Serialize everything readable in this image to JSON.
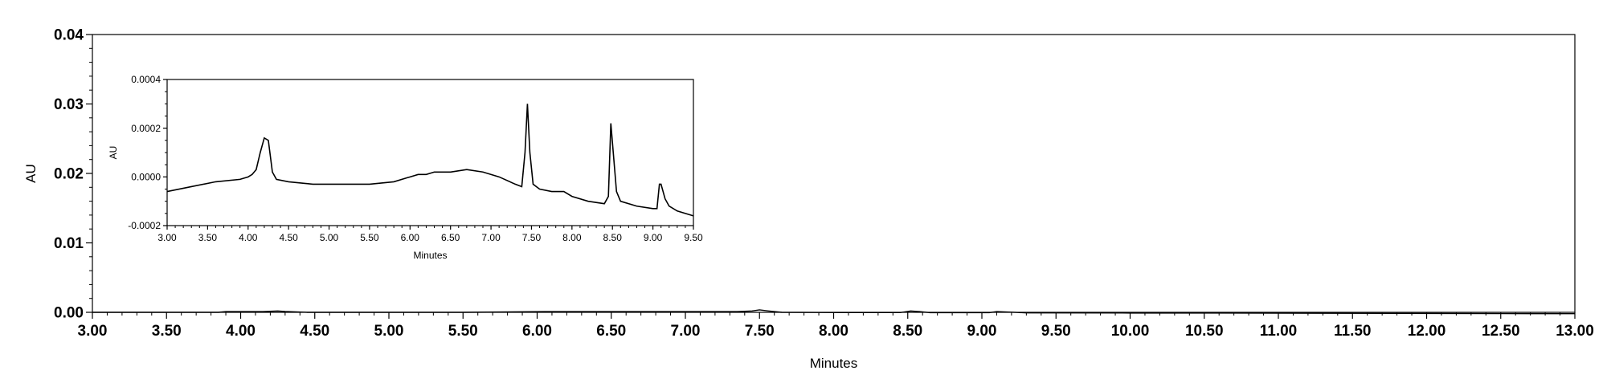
{
  "chart_data": [
    {
      "id": "main",
      "type": "line",
      "title": "",
      "xlabel": "Minutes",
      "ylabel": "AU",
      "xlim": [
        3.0,
        13.0
      ],
      "ylim": [
        0.0,
        0.04
      ],
      "xticks": [
        "3.00",
        "3.50",
        "4.00",
        "4.50",
        "5.00",
        "5.50",
        "6.00",
        "6.50",
        "7.00",
        "7.50",
        "8.00",
        "8.50",
        "9.00",
        "9.50",
        "10.00",
        "10.50",
        "11.00",
        "11.50",
        "12.00",
        "12.50",
        "13.00"
      ],
      "yticks": [
        "0.00",
        "0.01",
        "0.02",
        "0.03",
        "0.04"
      ],
      "grid": false,
      "legend": "none",
      "line_color": "#000000",
      "series": [
        {
          "x": [
            3.0,
            3.85,
            3.9,
            4.15,
            4.2,
            4.25,
            4.3,
            4.45,
            5.5,
            6.05,
            7.0,
            7.35,
            7.45,
            7.5,
            7.56,
            7.65,
            8.05,
            8.45,
            8.52,
            8.58,
            8.65,
            9.05,
            9.1,
            9.2,
            9.3,
            10.0,
            11.0,
            11.8,
            12.5,
            13.0
          ],
          "y": [
            0.0,
            0.0,
            0.0001,
            0.0001,
            0.00015,
            0.0002,
            0.00012,
            0.0,
            0.0,
            0.0001,
            0.0001,
            0.0001,
            0.0002,
            0.00035,
            0.0002,
            0.0,
            -3e-05,
            -3e-05,
            0.0002,
            0.0001,
            -5e-05,
            -5e-05,
            0.0001,
            2e-05,
            -8e-05,
            -0.0001,
            -0.00012,
            -0.00015,
            -0.00018,
            -0.0002
          ]
        }
      ]
    },
    {
      "id": "inset",
      "type": "line",
      "title": "",
      "xlabel": "Minutes",
      "ylabel": "AU",
      "xlim": [
        3.0,
        9.5
      ],
      "ylim": [
        -0.0002,
        0.0004
      ],
      "xticks": [
        "3.00",
        "3.50",
        "4.00",
        "4.50",
        "5.00",
        "5.50",
        "6.00",
        "6.50",
        "7.00",
        "7.50",
        "8.00",
        "8.50",
        "9.00",
        "9.50"
      ],
      "yticks": [
        "-0.0002",
        "0.0000",
        "0.0002",
        "0.0004"
      ],
      "grid": false,
      "legend": "none",
      "line_color": "#000000",
      "series": [
        {
          "x": [
            3.0,
            3.3,
            3.6,
            3.9,
            4.0,
            4.05,
            4.1,
            4.15,
            4.2,
            4.25,
            4.3,
            4.35,
            4.5,
            4.8,
            5.2,
            5.5,
            5.8,
            6.0,
            6.1,
            6.2,
            6.3,
            6.5,
            6.7,
            6.9,
            7.1,
            7.3,
            7.38,
            7.42,
            7.45,
            7.48,
            7.52,
            7.6,
            7.75,
            7.9,
            8.0,
            8.2,
            8.4,
            8.45,
            8.48,
            8.51,
            8.55,
            8.6,
            8.8,
            9.0,
            9.05,
            9.08,
            9.1,
            9.15,
            9.2,
            9.3,
            9.5
          ],
          "y": [
            -6e-05,
            -4e-05,
            -2e-05,
            -1e-05,
            0.0,
            1e-05,
            3e-05,
            0.0001,
            0.00016,
            0.00015,
            2e-05,
            -1e-05,
            -2e-05,
            -3e-05,
            -3e-05,
            -3e-05,
            -2e-05,
            0.0,
            1e-05,
            1e-05,
            2e-05,
            2e-05,
            3e-05,
            2e-05,
            0.0,
            -3e-05,
            -4e-05,
            0.0001,
            0.0003,
            0.0001,
            -3e-05,
            -5e-05,
            -6e-05,
            -6e-05,
            -8e-05,
            -0.0001,
            -0.00011,
            -8e-05,
            0.00022,
            0.0001,
            -6e-05,
            -0.0001,
            -0.00012,
            -0.00013,
            -0.00013,
            -3e-05,
            -3e-05,
            -9e-05,
            -0.00012,
            -0.00014,
            -0.00016
          ]
        }
      ]
    }
  ]
}
